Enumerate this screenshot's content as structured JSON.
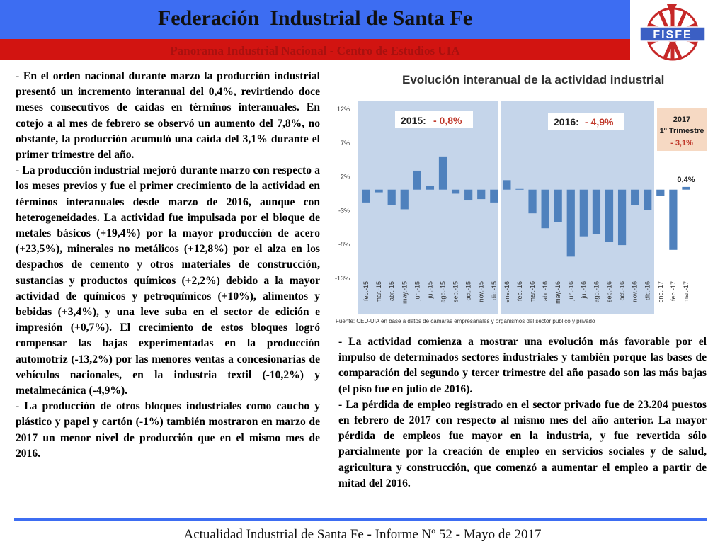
{
  "header": {
    "title": "Federación  Industrial de Santa Fe",
    "subtitle": "Panorama Industrial Nacional - Centro de Estudios UIA",
    "logo_text": "FISFE"
  },
  "left_column": [
    "- En el orden nacional durante marzo la producción industrial presentó un incremento interanual del 0,4%, revirtiendo doce meses consecutivos de caídas en términos interanuales. En cotejo a al mes de febrero se observó un aumento del 7,8%, no obstante, la producción acumuló una caída del 3,1% durante el primer trimestre del año.",
    "- La producción industrial mejoró durante marzo con respecto a los meses previos y fue el primer crecimiento de la actividad en términos interanuales desde marzo de 2016, aunque con heterogeneidades. La actividad fue impulsada por el bloque de metales básicos (+19,4%) por la mayor producción de acero (+23,5%), minerales no metálicos (+12,8%) por el alza en los despachos de cemento y otros materiales de construcción, sustancias y productos químicos (+2,2%) debido a la mayor actividad de químicos y petroquímicos (+10%), alimentos y bebidas (+3,4%), y una leve suba en el sector de edición e impresión (+0,7%). El crecimiento de estos bloques logró compensar las bajas experimentadas en la producción automotriz (-13,2%) por las menores ventas a concesionarias de vehículos nacionales, en la industria textil (-10,2%) y metalmecánica (-4,9%).",
    "- La producción de otros bloques industriales como caucho y plástico y papel y cartón (-1%) también mostraron en marzo de 2017 un menor nivel de producción que en el mismo mes de 2016."
  ],
  "right_column": [
    "- La actividad comienza a mostrar una evolución más favorable por el impulso de determinados sectores industriales y también porque las bases de comparación del segundo y tercer trimestre del año pasado son las más bajas (el piso fue en julio de 2016).",
    "- La pérdida de empleo registrado en el sector privado fue de 23.204 puestos en febrero de 2017 con respecto al mismo mes del año anterior. La mayor pérdida de empleos fue mayor en la industria, y fue revertida sólo parcialmente por la creación de empleo en servicios sociales y de salud, agricultura y construcción, que comenzó a aumentar el empleo a partir de mitad del 2016."
  ],
  "footer": "Actualidad Industrial de Santa Fe - Informe Nº 52 - Mayo de 2017",
  "chart_data": {
    "type": "bar",
    "title": "Evolución interanual de la actividad industrial",
    "source": "Fuente: CEU-UIA en base a datos de cámaras empresariales y organismos del sector público y privado",
    "categories": [
      "feb.-15",
      "mar.-15",
      "abr.-15",
      "may.-15",
      "jun.-15",
      "jul.-15",
      "ago.-15",
      "sep.-15",
      "oct.-15",
      "nov.-15",
      "dic.-15",
      "ene.-16",
      "feb.-16",
      "mar.-16",
      "abr.-16",
      "may.-16",
      "jun.-16",
      "jul.-16",
      "ago.-16",
      "sep.-16",
      "oct.-16",
      "nov.-16",
      "dic.-16",
      "ene.-17",
      "feb.-17",
      "mar.-17"
    ],
    "values": [
      -1.9,
      -0.4,
      -2.3,
      -2.9,
      2.8,
      0.5,
      4.9,
      -0.6,
      -1.6,
      -1.4,
      -1.9,
      1.4,
      0.1,
      -3.5,
      -5.7,
      -4.8,
      -9.9,
      -6.9,
      -6.6,
      -7.7,
      -8.2,
      -2.3,
      -3.0,
      -0.9,
      -8.9,
      0.4
    ],
    "ylim": [
      -13,
      12
    ],
    "yticks": [
      "12%",
      "7%",
      "2%",
      "-3%",
      "-8%",
      "-13%"
    ],
    "ytick_values": [
      12,
      7,
      2,
      -3,
      -8,
      -13
    ],
    "grid": false,
    "bar_color": "#4f81bd",
    "panel_color": "#c5d5ea",
    "annotations": {
      "y2015_label": "2015:",
      "y2015_value": "- 0,8%",
      "y2016_label": "2016:",
      "y2016_value": "- 4,9%",
      "q1_line1": "2017",
      "q1_line2": "1º Trimestre",
      "q1_value": "- 3,1%",
      "last_label": "0,4%"
    }
  }
}
